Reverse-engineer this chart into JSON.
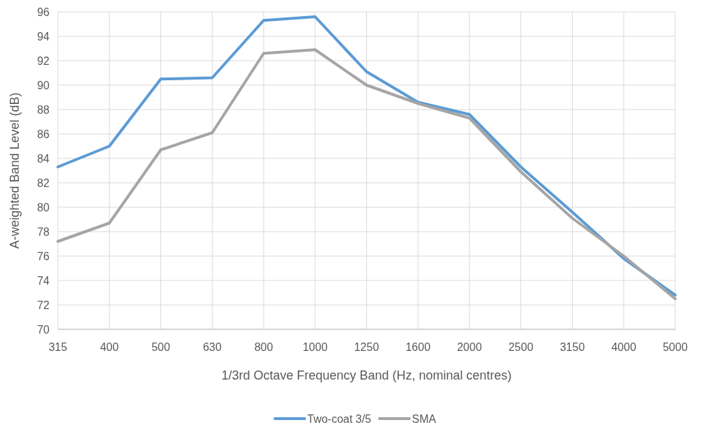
{
  "chart_data": {
    "type": "line",
    "xlabel": "1/3rd Octave Frequency Band (Hz, nominal centres)",
    "ylabel": "A-weighted Band Level (dB)",
    "categories": [
      "315",
      "400",
      "500",
      "630",
      "800",
      "1000",
      "1250",
      "1600",
      "2000",
      "2500",
      "3150",
      "4000",
      "5000"
    ],
    "series": [
      {
        "name": "Two-coat 3/5",
        "color": "#5b9bd5",
        "values": [
          83.3,
          85.0,
          90.5,
          90.6,
          95.3,
          95.6,
          91.1,
          88.6,
          87.6,
          83.3,
          79.6,
          75.8,
          72.8
        ]
      },
      {
        "name": "SMA",
        "color": "#a5a5a5",
        "values": [
          77.2,
          78.7,
          84.7,
          86.1,
          92.6,
          92.9,
          90.0,
          88.5,
          87.3,
          82.9,
          79.1,
          76.0,
          72.5
        ]
      }
    ],
    "ylim": [
      70,
      96
    ],
    "yticks": [
      70,
      72,
      74,
      76,
      78,
      80,
      82,
      84,
      86,
      88,
      90,
      92,
      94,
      96
    ],
    "grid": true,
    "legend": "bottom",
    "marker": "none",
    "line_style": "solid"
  }
}
